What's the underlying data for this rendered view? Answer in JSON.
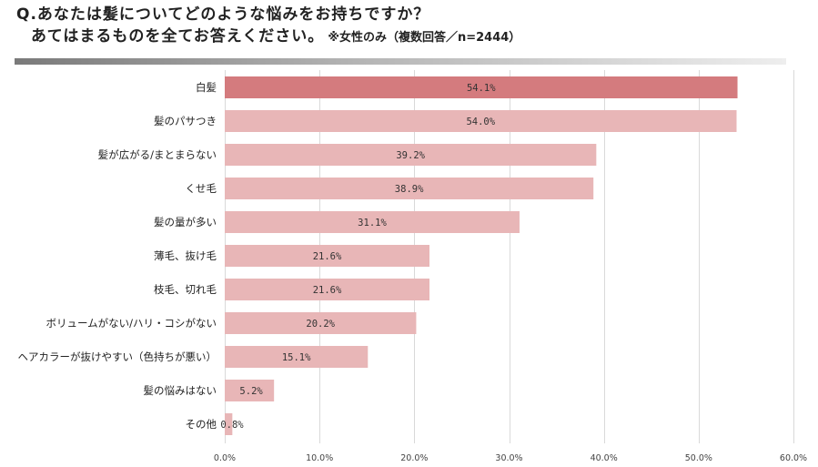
{
  "header": {
    "title_line1": "Q.あなたは髪についてどのような悩みをお持ちですか？",
    "title_line2": "あてはまるものを全てお答えください。",
    "note": "※女性のみ（複数回答／n=2444）"
  },
  "chart_data": {
    "type": "bar",
    "orientation": "horizontal",
    "categories": [
      "白髪",
      "髪のパサつき",
      "髪が広がる/まとまらない",
      "くせ毛",
      "髪の量が多い",
      "薄毛、抜け毛",
      "枝毛、切れ毛",
      "ボリュームがない/ハリ・コシがない",
      "ヘアカラーが抜けやすい（色持ちが悪い）",
      "髪の悩みはない",
      "その他"
    ],
    "values": [
      54.1,
      54.0,
      39.2,
      38.9,
      31.1,
      21.6,
      21.6,
      20.2,
      15.1,
      5.2,
      0.8
    ],
    "value_labels": [
      "54.1%",
      "54.0%",
      "39.2%",
      "38.9%",
      "31.1%",
      "21.6%",
      "21.6%",
      "20.2%",
      "15.1%",
      "5.2%",
      "0.8%"
    ],
    "xlim": [
      0,
      60
    ],
    "ticks": [
      0,
      10,
      20,
      30,
      40,
      50,
      60
    ],
    "tick_labels": [
      "0.0%",
      "10.0%",
      "20.0%",
      "30.0%",
      "40.0%",
      "50.0%",
      "60.0%"
    ],
    "grid": true,
    "legend": "none",
    "colors": {
      "highlight": "#d47b7e",
      "bar": "#e8b6b7",
      "grid": "#d9d9d9"
    }
  }
}
